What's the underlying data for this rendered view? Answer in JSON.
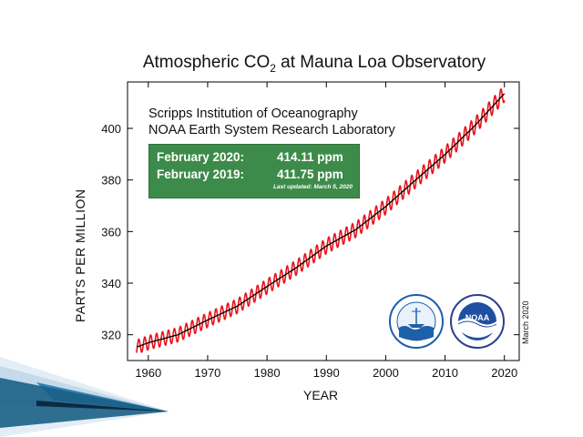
{
  "chart_data": {
    "type": "line",
    "title_prefix": "Atmospheric CO",
    "title_sub": "2",
    "title_suffix": " at Mauna Loa Observatory",
    "xlabel": "YEAR",
    "ylabel": "PARTS PER MILLION",
    "xlim": [
      1956.5,
      2022.5
    ],
    "ylim": [
      310,
      418
    ],
    "xticks": [
      1960,
      1970,
      1980,
      1990,
      2000,
      2010,
      2020
    ],
    "yticks": [
      320,
      340,
      360,
      380,
      400
    ],
    "series": [
      {
        "style": "monthly",
        "color": "#e8131b",
        "trend_x": [
          1958,
          1960,
          1965,
          1970,
          1975,
          1980,
          1985,
          1990,
          1995,
          2000,
          2005,
          2010,
          2015,
          2020
        ],
        "trend_y": [
          315.2,
          316.9,
          320.0,
          325.7,
          331.1,
          338.7,
          346.1,
          354.4,
          360.8,
          369.7,
          379.9,
          389.9,
          401.0,
          413.5
        ],
        "seasonal_amplitude": 3.2
      },
      {
        "style": "trend",
        "color": "#000000",
        "x": [
          1958,
          1960,
          1965,
          1970,
          1975,
          1980,
          1985,
          1990,
          1995,
          2000,
          2005,
          2010,
          2015,
          2020
        ],
        "y": [
          315.2,
          316.9,
          320.0,
          325.7,
          331.1,
          338.7,
          346.1,
          354.4,
          360.8,
          369.7,
          379.9,
          389.9,
          401.0,
          413.5
        ]
      }
    ],
    "institution_line1": "Scripps Institution of Oceanography",
    "institution_line2": "NOAA Earth System Research Laboratory",
    "info_box": {
      "line1_label": "February 2020:",
      "line1_value": "414.11 ppm",
      "line2_label": "February 2019:",
      "line2_value": "411.75 ppm",
      "updated": "Last updated: March 5, 2020"
    },
    "vertical_date": "March 2020",
    "noaa_logo_text": "NOAA",
    "colors": {
      "monthly": "#e8131b",
      "trend": "#000000",
      "box": "#3d8b4a",
      "slide_accent": "#1a6f9a"
    }
  }
}
